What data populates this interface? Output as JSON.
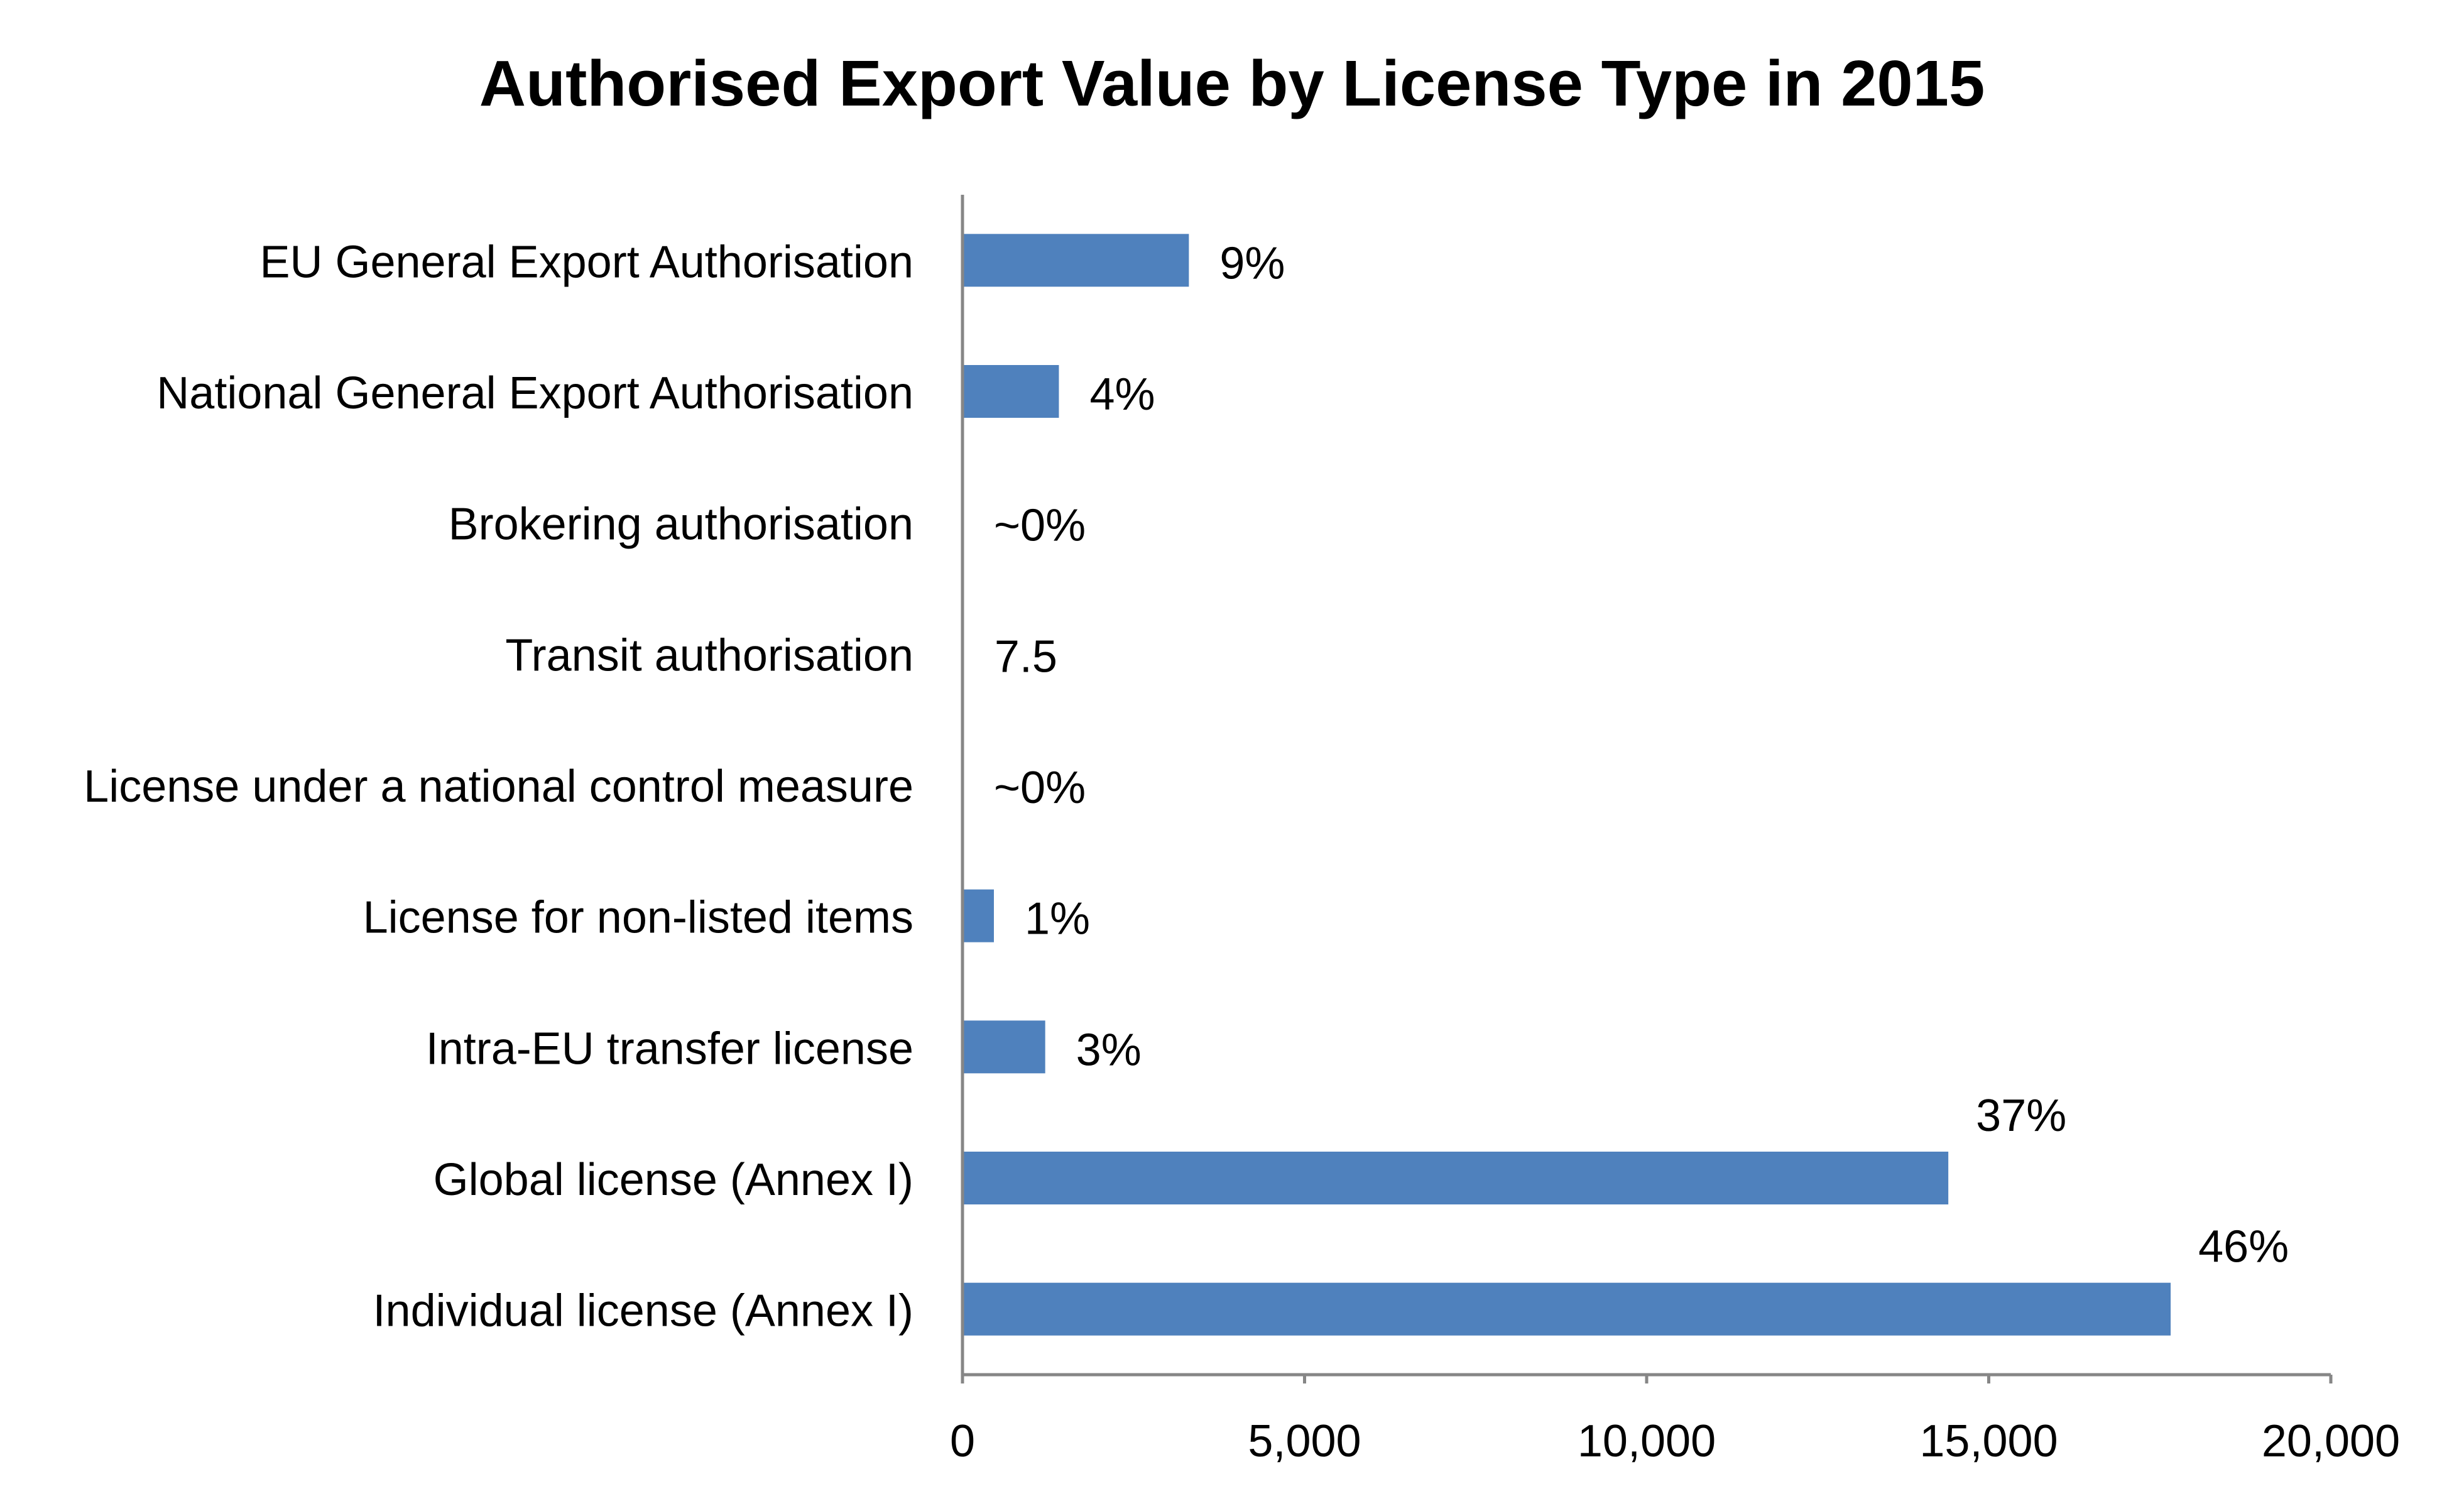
{
  "chart_data": {
    "type": "bar",
    "orientation": "horizontal",
    "title": "Authorised Export Value by License Type in 2015",
    "xlabel": "",
    "ylabel": "",
    "xlim": [
      0,
      20000
    ],
    "x_ticks": [
      0,
      5000,
      10000,
      15000,
      20000
    ],
    "x_tick_labels": [
      "0",
      "5,000",
      "10,000",
      "15,000",
      "20,000"
    ],
    "grid": false,
    "legend": "none",
    "bar_color": "#4F81BD",
    "categories": [
      "EU General Export Authorisation",
      "National General Export Authorisation",
      "Brokering authorisation",
      "Transit authorisation",
      "License under a national control measure",
      "License for non-listed items",
      "Intra-EU transfer license",
      "Global license (Annex I)",
      "Individual license (Annex I)"
    ],
    "values": [
      3300,
      1400,
      0,
      7.5,
      0,
      450,
      1200,
      14400,
      17650
    ],
    "data_labels": [
      "9%",
      "4%",
      "~0%",
      "7.5",
      "~0%",
      "1%",
      "3%",
      "37%",
      "46%"
    ]
  }
}
